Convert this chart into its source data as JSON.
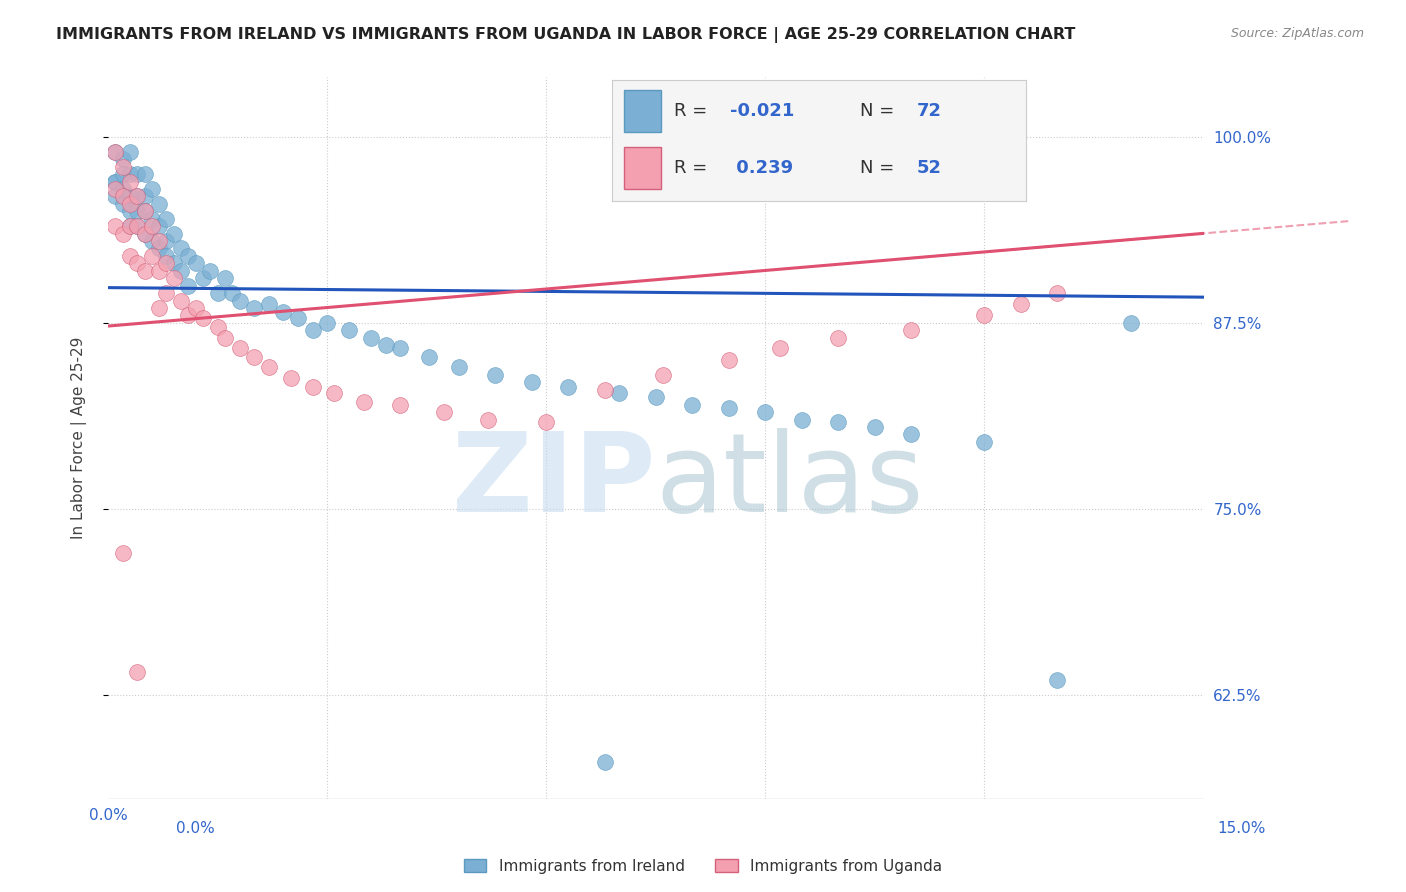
{
  "title": "IMMIGRANTS FROM IRELAND VS IMMIGRANTS FROM UGANDA IN LABOR FORCE | AGE 25-29 CORRELATION CHART",
  "source": "Source: ZipAtlas.com",
  "ylabel": "In Labor Force | Age 25-29",
  "yticks": [
    "62.5%",
    "75.0%",
    "87.5%",
    "100.0%"
  ],
  "ytick_vals": [
    0.625,
    0.75,
    0.875,
    1.0
  ],
  "xlim": [
    0.0,
    0.15
  ],
  "ylim": [
    0.555,
    1.04
  ],
  "ireland_color": "#7bafd4",
  "ireland_edge_color": "#5a9abf",
  "uganda_color": "#f4a0b0",
  "uganda_edge_color": "#d4607a",
  "ireland_trend_color": "#2255bb",
  "uganda_trend_color": "#e05070",
  "ireland_R": -0.021,
  "ireland_N": 72,
  "uganda_R": 0.239,
  "uganda_N": 52,
  "grid_color": "#cccccc",
  "text_color": "#3366cc",
  "title_color": "#222222",
  "source_color": "#888888",
  "watermark_zip_color": "#c8ddf0",
  "watermark_atlas_color": "#a0c0cc",
  "legend_bg": "#f5f5f5",
  "legend_border": "#cccccc"
}
